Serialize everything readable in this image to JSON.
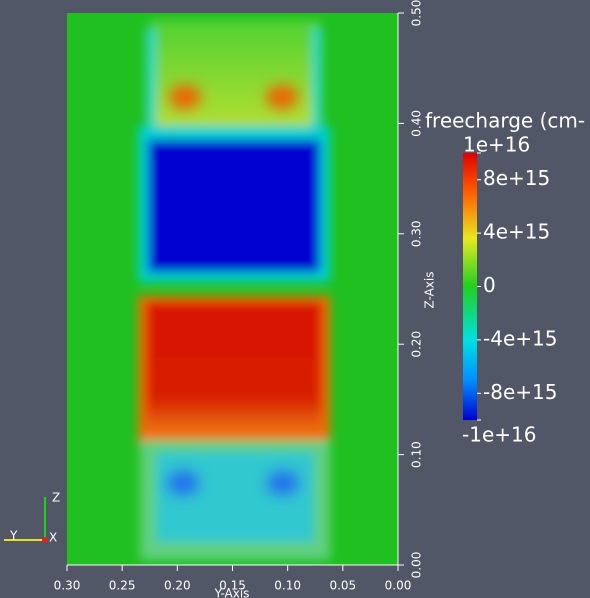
{
  "chart_data": {
    "type": "field",
    "xlabel": "Y-Axis",
    "ylabel": "Z-Axis",
    "xlim": [
      0.3,
      0.0
    ],
    "ylim": [
      0.0,
      0.5
    ],
    "xticks": [
      {
        "value": 0.3,
        "label": "0.30"
      },
      {
        "value": 0.25,
        "label": "0.25"
      },
      {
        "value": 0.2,
        "label": "0.20"
      },
      {
        "value": 0.15,
        "label": "0.15"
      },
      {
        "value": 0.1,
        "label": "0.10"
      },
      {
        "value": 0.05,
        "label": "0.05"
      },
      {
        "value": 0.0,
        "label": "0.00"
      }
    ],
    "yticks": [
      {
        "value": 0.0,
        "label": "0.00"
      },
      {
        "value": 0.1,
        "label": "0.10"
      },
      {
        "value": 0.2,
        "label": "0.20"
      },
      {
        "value": 0.3,
        "label": "0.30"
      },
      {
        "value": 0.4,
        "label": "0.40"
      },
      {
        "value": 0.5,
        "label": "0.50"
      }
    ],
    "colorbar": {
      "title": "freecharge (cm-",
      "clim": [
        -1e+16,
        1e+16
      ],
      "ticks": [
        {
          "value": 1e+16,
          "label": "1e+16"
        },
        {
          "value": 8000000000000000.0,
          "label": "8e+15"
        },
        {
          "value": 4000000000000000.0,
          "label": "4e+15"
        },
        0,
        {
          "value": -4000000000000000.0,
          "label": "-4e+15"
        },
        {
          "value": -8000000000000000.0,
          "label": "-8e+15"
        },
        {
          "value": -1e+16,
          "label": "-1e+16"
        }
      ]
    }
  },
  "orientation_axes": {
    "labels": [
      "Z",
      "Y",
      "X"
    ]
  }
}
